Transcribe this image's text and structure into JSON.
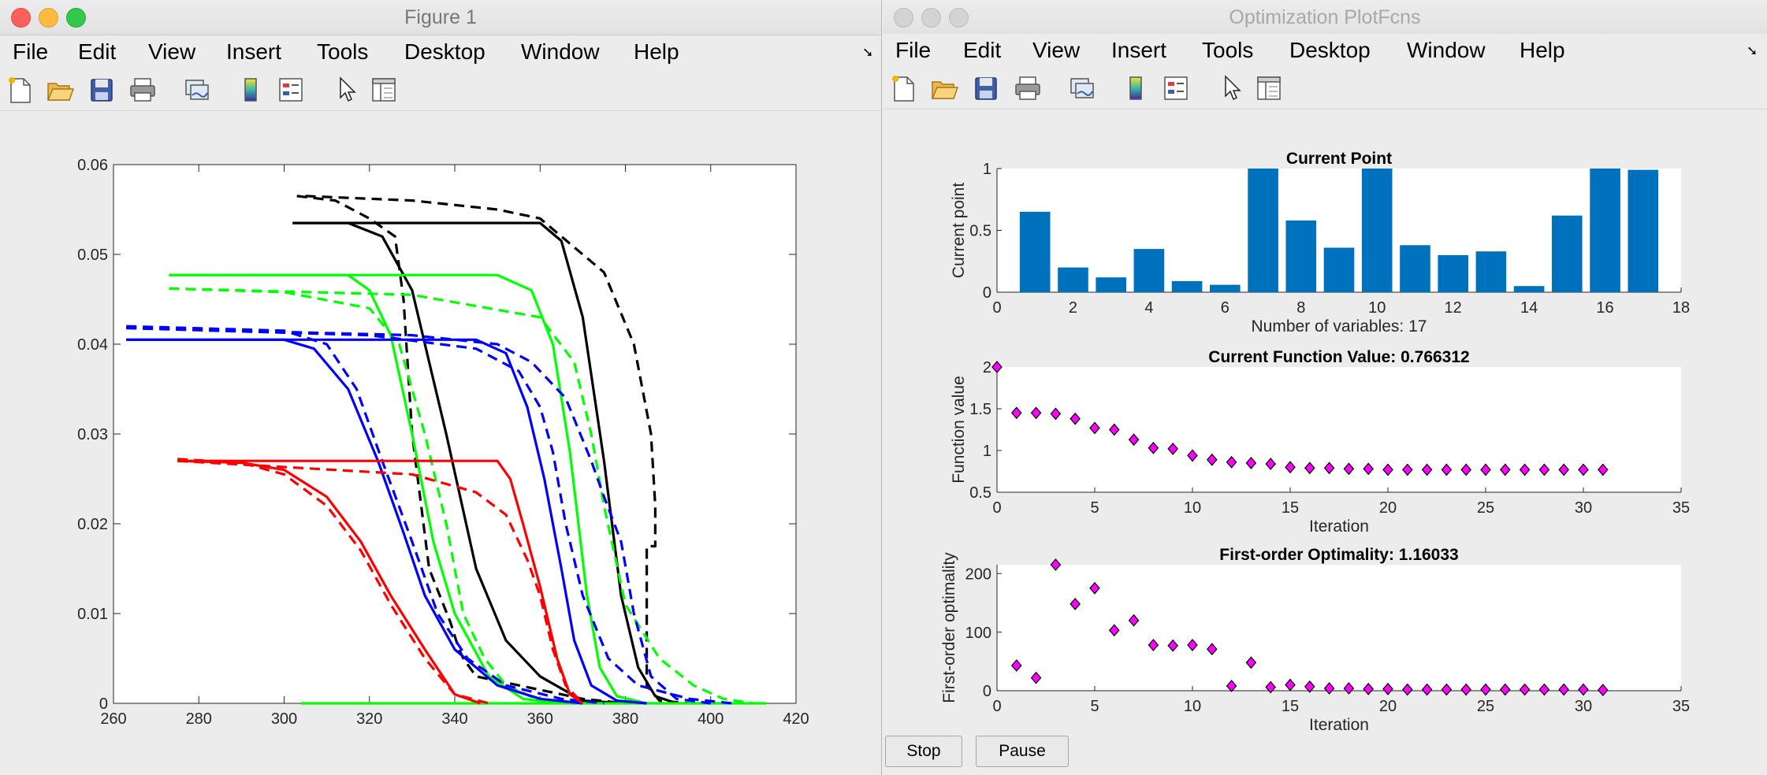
{
  "left_window": {
    "title": "Figure 1",
    "menu": [
      "File",
      "Edit",
      "View",
      "Insert",
      "Tools",
      "Desktop",
      "Window",
      "Help"
    ],
    "toolbar_icons": [
      "new-figure-icon",
      "open-file-icon",
      "save-icon",
      "print-icon",
      "link-plot-icon",
      "colorbar-icon",
      "legend-icon",
      "pointer-icon",
      "property-editor-icon"
    ]
  },
  "right_window": {
    "title": "Optimization PlotFcns",
    "menu": [
      "File",
      "Edit",
      "View",
      "Insert",
      "Tools",
      "Desktop",
      "Window",
      "Help"
    ],
    "toolbar_icons": [
      "new-figure-icon",
      "open-file-icon",
      "save-icon",
      "print-icon",
      "link-plot-icon",
      "colorbar-icon",
      "legend-icon",
      "pointer-icon",
      "property-editor-icon"
    ],
    "buttons": {
      "stop": "Stop",
      "pause": "Pause"
    }
  },
  "colors": {
    "blue": "#0000ff",
    "green": "#00ff00",
    "red": "#ff0000",
    "black": "#000000",
    "bar": "#0072bd",
    "marker": "#ff00ff"
  },
  "chart_data": [
    {
      "id": "figure1",
      "type": "line",
      "xlim": [
        260,
        420
      ],
      "ylim": [
        0,
        0.06
      ],
      "xticks": [
        260,
        280,
        300,
        320,
        340,
        360,
        380,
        400,
        420
      ],
      "yticks": [
        0,
        0.01,
        0.02,
        0.03,
        0.04,
        0.05,
        0.06
      ],
      "ytick_labels": [
        "0",
        "0.01",
        "0.02",
        "0.03",
        "0.04",
        "0.05",
        "0.06"
      ],
      "series": [
        {
          "color": "black",
          "style": "solid",
          "points": [
            [
              302,
              0.0535
            ],
            [
              315,
              0.0535
            ],
            [
              323,
              0.052
            ],
            [
              330,
              0.046
            ],
            [
              338,
              0.03
            ],
            [
              345,
              0.015
            ],
            [
              352,
              0.007
            ],
            [
              360,
              0.003
            ],
            [
              370,
              0.0003
            ],
            [
              380,
              0
            ]
          ]
        },
        {
          "color": "black",
          "style": "dashed",
          "points": [
            [
              303,
              0.0565
            ],
            [
              312,
              0.056
            ],
            [
              320,
              0.054
            ],
            [
              326,
              0.052
            ],
            [
              328,
              0.045
            ],
            [
              330,
              0.03
            ],
            [
              334,
              0.015
            ],
            [
              339,
              0.009
            ],
            [
              341,
              0.006
            ],
            [
              342,
              0.005
            ],
            [
              345,
              0.003
            ],
            [
              360,
              0.0015
            ],
            [
              370,
              0.0005
            ],
            [
              380,
              0
            ]
          ]
        },
        {
          "color": "black",
          "style": "solid",
          "points": [
            [
              302,
              0.0535
            ],
            [
              360,
              0.0535
            ],
            [
              365,
              0.0515
            ],
            [
              370,
              0.043
            ],
            [
              375,
              0.027
            ],
            [
              379,
              0.012
            ],
            [
              383,
              0.004
            ],
            [
              387,
              0.0008
            ],
            [
              392,
              0
            ]
          ]
        },
        {
          "color": "black",
          "style": "dashed",
          "points": [
            [
              305,
              0.0565
            ],
            [
              330,
              0.056
            ],
            [
              350,
              0.055
            ],
            [
              360,
              0.054
            ],
            [
              365,
              0.052
            ],
            [
              375,
              0.048
            ],
            [
              382,
              0.04
            ],
            [
              386,
              0.03
            ],
            [
              387,
              0.022
            ],
            [
              387,
              0.0175
            ],
            [
              385,
              0.0175
            ],
            [
              385,
              0.002
            ],
            [
              388,
              0.0003
            ],
            [
              395,
              0
            ]
          ]
        },
        {
          "color": "green",
          "style": "solid",
          "points": [
            [
              273,
              0.0477
            ],
            [
              315,
              0.0477
            ],
            [
              320,
              0.046
            ],
            [
              325,
              0.041
            ],
            [
              330,
              0.03
            ],
            [
              335,
              0.018
            ],
            [
              340,
              0.01
            ],
            [
              348,
              0.003
            ],
            [
              356,
              0.0005
            ],
            [
              365,
              0
            ]
          ]
        },
        {
          "color": "green",
          "style": "dashed",
          "points": [
            [
              273,
              0.0462
            ],
            [
              300,
              0.0458
            ],
            [
              320,
              0.044
            ],
            [
              327,
              0.04
            ],
            [
              333,
              0.03
            ],
            [
              338,
              0.02
            ],
            [
              342,
              0.01
            ],
            [
              347,
              0.005
            ],
            [
              352,
              0.002
            ],
            [
              360,
              0.0003
            ],
            [
              370,
              0
            ]
          ]
        },
        {
          "color": "green",
          "style": "solid",
          "points": [
            [
              273,
              0.0477
            ],
            [
              350,
              0.0477
            ],
            [
              358,
              0.046
            ],
            [
              363,
              0.04
            ],
            [
              367,
              0.028
            ],
            [
              371,
              0.012
            ],
            [
              374,
              0.004
            ],
            [
              378,
              0.0008
            ],
            [
              385,
              0
            ]
          ]
        },
        {
          "color": "green",
          "style": "dashed",
          "points": [
            [
              273,
              0.0462
            ],
            [
              330,
              0.0455
            ],
            [
              360,
              0.043
            ],
            [
              368,
              0.038
            ],
            [
              372,
              0.03
            ],
            [
              375,
              0.022
            ],
            [
              380,
              0.011
            ],
            [
              388,
              0.005
            ],
            [
              396,
              0.002
            ],
            [
              403,
              0.0005
            ],
            [
              410,
              0
            ]
          ]
        },
        {
          "color": "green",
          "style": "solid",
          "points": [
            [
              304,
              0
            ],
            [
              340,
              0
            ],
            [
              380,
              0
            ],
            [
              413,
              0
            ]
          ]
        },
        {
          "color": "blue",
          "style": "solid",
          "points": [
            [
              263,
              0.0405
            ],
            [
              300,
              0.0405
            ],
            [
              307,
              0.0395
            ],
            [
              315,
              0.035
            ],
            [
              322,
              0.027
            ],
            [
              328,
              0.019
            ],
            [
              333,
              0.012
            ],
            [
              340,
              0.006
            ],
            [
              350,
              0.002
            ],
            [
              360,
              0.0005
            ],
            [
              370,
              0
            ]
          ]
        },
        {
          "color": "blue",
          "style": "dashed",
          "points": [
            [
              263,
              0.042
            ],
            [
              300,
              0.0415
            ],
            [
              310,
              0.04
            ],
            [
              317,
              0.035
            ],
            [
              323,
              0.027
            ],
            [
              330,
              0.018
            ],
            [
              336,
              0.01
            ],
            [
              343,
              0.005
            ],
            [
              352,
              0.002
            ],
            [
              365,
              0.0005
            ],
            [
              375,
              0
            ]
          ]
        },
        {
          "color": "blue",
          "style": "solid",
          "points": [
            [
              263,
              0.0405
            ],
            [
              345,
              0.0405
            ],
            [
              352,
              0.039
            ],
            [
              357,
              0.033
            ],
            [
              361,
              0.025
            ],
            [
              365,
              0.015
            ],
            [
              368,
              0.007
            ],
            [
              372,
              0.002
            ],
            [
              378,
              0.0003
            ],
            [
              385,
              0
            ]
          ]
        },
        {
          "color": "blue",
          "style": "dashed",
          "points": [
            [
              263,
              0.0418
            ],
            [
              320,
              0.041
            ],
            [
              345,
              0.0395
            ],
            [
              355,
              0.037
            ],
            [
              360,
              0.033
            ],
            [
              363,
              0.028
            ],
            [
              366,
              0.02
            ],
            [
              370,
              0.012
            ],
            [
              376,
              0.005
            ],
            [
              383,
              0.002
            ],
            [
              395,
              0.0005
            ],
            [
              405,
              0
            ]
          ]
        },
        {
          "color": "blue",
          "style": "dashed",
          "points": [
            [
              263,
              0.0418
            ],
            [
              330,
              0.041
            ],
            [
              350,
              0.04
            ],
            [
              358,
              0.038
            ],
            [
              366,
              0.034
            ],
            [
              372,
              0.027
            ],
            [
              375,
              0.023
            ],
            [
              379,
              0.018
            ],
            [
              382,
              0.01
            ],
            [
              386,
              0.003
            ],
            [
              392,
              0.0005
            ],
            [
              400,
              0
            ]
          ]
        },
        {
          "color": "red",
          "style": "solid",
          "points": [
            [
              275,
              0.027
            ],
            [
              290,
              0.0268
            ],
            [
              300,
              0.026
            ],
            [
              310,
              0.023
            ],
            [
              318,
              0.018
            ],
            [
              325,
              0.012
            ],
            [
              333,
              0.006
            ],
            [
              340,
              0.001
            ],
            [
              346,
              0
            ]
          ]
        },
        {
          "color": "red",
          "style": "dashed",
          "points": [
            [
              275,
              0.0272
            ],
            [
              290,
              0.0268
            ],
            [
              300,
              0.0255
            ],
            [
              310,
              0.022
            ],
            [
              318,
              0.017
            ],
            [
              325,
              0.011
            ],
            [
              333,
              0.005
            ],
            [
              340,
              0.001
            ],
            [
              348,
              0
            ]
          ]
        },
        {
          "color": "red",
          "style": "solid",
          "points": [
            [
              275,
              0.027
            ],
            [
              350,
              0.027
            ],
            [
              353,
              0.025
            ],
            [
              356,
              0.02
            ],
            [
              360,
              0.013
            ],
            [
              364,
              0.005
            ],
            [
              367,
              0.001
            ],
            [
              370,
              0
            ]
          ]
        },
        {
          "color": "red",
          "style": "dashed",
          "points": [
            [
              275,
              0.027
            ],
            [
              330,
              0.0255
            ],
            [
              345,
              0.0235
            ],
            [
              352,
              0.021
            ],
            [
              357,
              0.016
            ],
            [
              360,
              0.012
            ],
            [
              363,
              0.006
            ],
            [
              366,
              0.002
            ],
            [
              370,
              0
            ]
          ]
        }
      ]
    },
    {
      "id": "current-point",
      "type": "bar",
      "title": "Current Point",
      "xlabel": "Number of variables: 17",
      "ylabel": "Current point",
      "xlim": [
        0,
        18
      ],
      "ylim": [
        0,
        1
      ],
      "xticks": [
        0,
        2,
        4,
        6,
        8,
        10,
        12,
        14,
        16,
        18
      ],
      "yticks": [
        0,
        0.5,
        1
      ],
      "ytick_labels": [
        "0",
        "0.5",
        "1"
      ],
      "categories": [
        1,
        2,
        3,
        4,
        5,
        6,
        7,
        8,
        9,
        10,
        11,
        12,
        13,
        14,
        15,
        16,
        17
      ],
      "values": [
        0.65,
        0.2,
        0.12,
        0.35,
        0.09,
        0.06,
        1.0,
        0.58,
        0.36,
        1.0,
        0.38,
        0.3,
        0.33,
        0.05,
        0.62,
        1.0,
        0.99
      ]
    },
    {
      "id": "function-value",
      "type": "scatter",
      "title": "Current Function Value: 0.766312",
      "xlabel": "Iteration",
      "ylabel": "Function value",
      "xlim": [
        0,
        35
      ],
      "ylim": [
        0.5,
        2
      ],
      "xticks": [
        0,
        5,
        10,
        15,
        20,
        25,
        30,
        35
      ],
      "yticks": [
        0.5,
        1,
        1.5,
        2
      ],
      "ytick_labels": [
        "0.5",
        "1",
        "1.5",
        "2"
      ],
      "x": [
        0,
        1,
        2,
        3,
        4,
        5,
        6,
        7,
        8,
        9,
        10,
        11,
        12,
        13,
        14,
        15,
        16,
        17,
        18,
        19,
        20,
        21,
        22,
        23,
        24,
        25,
        26,
        27,
        28,
        29,
        30,
        31
      ],
      "y": [
        2.0,
        1.45,
        1.45,
        1.44,
        1.38,
        1.27,
        1.25,
        1.13,
        1.03,
        1.02,
        0.94,
        0.89,
        0.86,
        0.85,
        0.84,
        0.8,
        0.79,
        0.79,
        0.78,
        0.78,
        0.77,
        0.77,
        0.77,
        0.77,
        0.77,
        0.77,
        0.77,
        0.77,
        0.77,
        0.77,
        0.77,
        0.77
      ]
    },
    {
      "id": "first-order-optimality",
      "type": "scatter",
      "title": "First-order Optimality: 1.16033",
      "xlabel": "Iteration",
      "ylabel": "First-order optimality",
      "xlim": [
        0,
        35
      ],
      "ylim": [
        0,
        215
      ],
      "xticks": [
        0,
        5,
        10,
        15,
        20,
        25,
        30,
        35
      ],
      "yticks": [
        0,
        100,
        200
      ],
      "ytick_labels": [
        "0",
        "100",
        "200"
      ],
      "x": [
        1,
        2,
        3,
        4,
        5,
        6,
        7,
        8,
        9,
        10,
        11,
        12,
        13,
        14,
        15,
        16,
        17,
        18,
        19,
        20,
        21,
        22,
        23,
        24,
        25,
        26,
        27,
        28,
        29,
        30,
        31
      ],
      "y": [
        43,
        22,
        215,
        148,
        175,
        103,
        120,
        78,
        77,
        78,
        71,
        8,
        48,
        6,
        10,
        7,
        4,
        4,
        3,
        3,
        2,
        2,
        2,
        2,
        2,
        2,
        2,
        2,
        2,
        2,
        1.16
      ]
    }
  ]
}
